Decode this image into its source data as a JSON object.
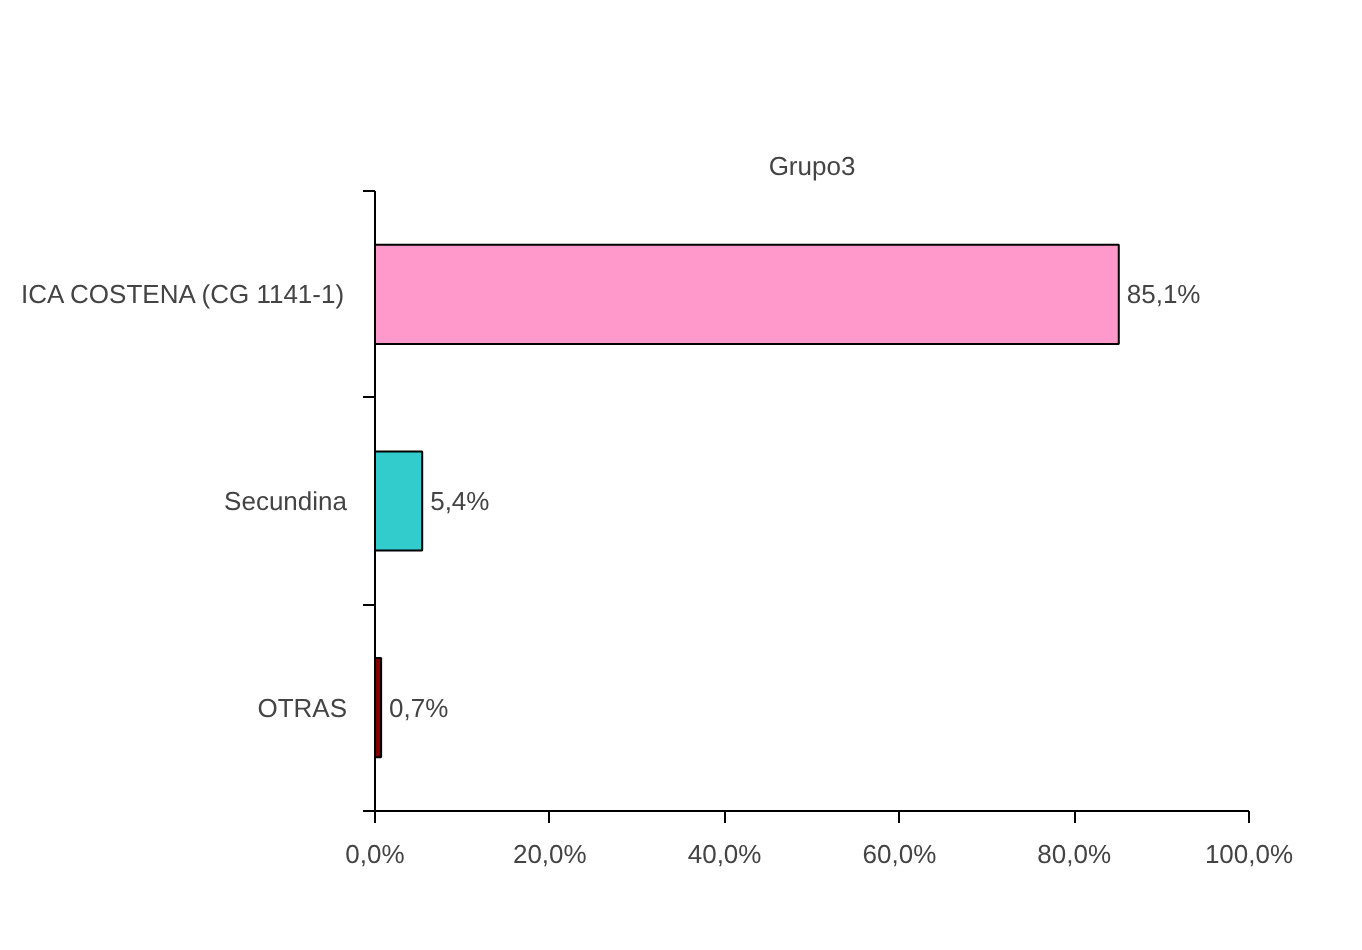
{
  "chart_data": {
    "type": "bar",
    "orientation": "horizontal",
    "title": "Grupo3",
    "categories": [
      "ICA COSTENA (CG 1141-1)",
      "Secundina",
      "OTRAS"
    ],
    "values": [
      85.1,
      5.4,
      0.7
    ],
    "colors": [
      "#ff99cc",
      "#33cccc",
      "#800000"
    ],
    "value_labels": [
      "85,1%",
      "5,4%",
      "0,7%"
    ],
    "xlim": [
      0,
      100
    ],
    "xticks": [
      {
        "value": 0,
        "label": "0,0%"
      },
      {
        "value": 20,
        "label": "20,0%"
      },
      {
        "value": 40,
        "label": "40,0%"
      },
      {
        "value": 60,
        "label": "60,0%"
      },
      {
        "value": 80,
        "label": "80,0%"
      },
      {
        "value": 100,
        "label": "100,0%"
      }
    ],
    "grid": false
  }
}
